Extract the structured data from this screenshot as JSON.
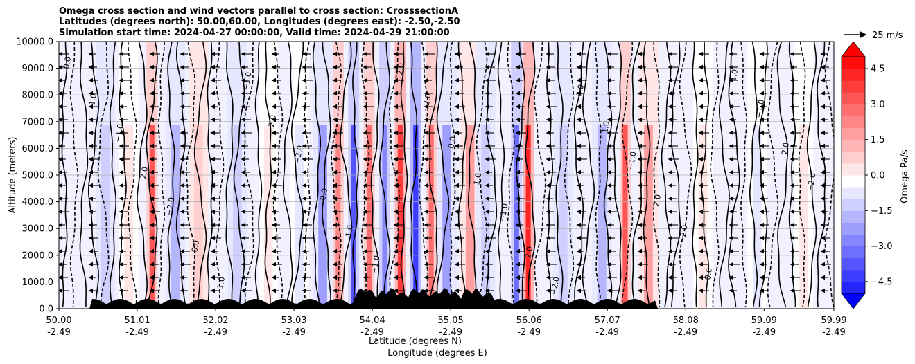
{
  "chart_data": {
    "type": "contour-vector",
    "title_lines": [
      "Omega cross section and wind vectors parallel to cross section: CrosssectionA",
      "Latitudes (degrees north): 50.00,60.00, Longitudes (degrees east): -2.50,-2.50",
      "Simulation start time: 2024-04-27 00:00:00, Valid time: 2024-04-29 21:00:00"
    ],
    "ylabel": "Altitude (meters)",
    "xlabel_lat": "Latitude (degrees N)",
    "xlabel_lon": "Longitude (degrees E)",
    "yticks": [
      "0.0",
      "1000.0",
      "2000.0",
      "3000.0",
      "4000.0",
      "5000.0",
      "6000.0",
      "7000.0",
      "8000.0",
      "9000.0",
      "10000.0"
    ],
    "y_values": [
      0,
      1000,
      2000,
      3000,
      4000,
      5000,
      6000,
      7000,
      8000,
      9000,
      10000
    ],
    "ylim": [
      0,
      10000
    ],
    "xticks_lat": [
      "50.00",
      "51.01",
      "52.02",
      "53.03",
      "54.04",
      "55.05",
      "56.06",
      "57.07",
      "58.08",
      "59.09",
      "59.99"
    ],
    "xticks_lon": [
      "-2.49",
      "-2.49",
      "-2.49",
      "-2.49",
      "-2.49",
      "-2.49",
      "-2.49",
      "-2.49",
      "-2.49",
      "-2.49",
      "-2.49"
    ],
    "x_values": [
      50.0,
      51.01,
      52.02,
      53.03,
      54.04,
      55.05,
      56.06,
      57.07,
      58.08,
      59.09,
      59.99
    ],
    "xlim": [
      50.0,
      59.99
    ],
    "colorbar": {
      "label": "Omega Pa/s",
      "ticks": [
        "4.5",
        "3.0",
        "1.5",
        "0.0",
        "−1.5",
        "−3.0",
        "−4.5"
      ],
      "tick_values": [
        4.5,
        3.0,
        1.5,
        0.0,
        -1.5,
        -3.0,
        -4.5
      ],
      "range": [
        -5.0,
        5.0
      ],
      "levels": 20,
      "low_color": "#0000ff",
      "high_color": "#ff0000",
      "mid_color": "#ffffff"
    },
    "quiver_key": {
      "label": "25 m/s",
      "speed": 25
    },
    "contour_labels": [
      "0.0",
      "1.0",
      "−1.0",
      "2.0",
      "−2.0"
    ],
    "bands": [
      {
        "lat": 50.6,
        "omega": -0.8
      },
      {
        "lat": 50.9,
        "omega": 0.6
      },
      {
        "lat": 51.2,
        "omega": 3.5
      },
      {
        "lat": 51.5,
        "omega": -1.5
      },
      {
        "lat": 51.8,
        "omega": 0.8
      },
      {
        "lat": 52.3,
        "omega": -1.0
      },
      {
        "lat": 52.7,
        "omega": 0.5
      },
      {
        "lat": 53.1,
        "omega": -0.6
      },
      {
        "lat": 53.4,
        "omega": -2.0
      },
      {
        "lat": 53.6,
        "omega": 2.5
      },
      {
        "lat": 53.8,
        "omega": -3.5
      },
      {
        "lat": 54.0,
        "omega": 3.0
      },
      {
        "lat": 54.2,
        "omega": -2.5
      },
      {
        "lat": 54.4,
        "omega": 4.0
      },
      {
        "lat": 54.6,
        "omega": -4.0
      },
      {
        "lat": 54.8,
        "omega": 3.0
      },
      {
        "lat": 55.0,
        "omega": -2.0
      },
      {
        "lat": 55.3,
        "omega": 2.0
      },
      {
        "lat": 55.5,
        "omega": -1.0
      },
      {
        "lat": 55.9,
        "omega": -3.0
      },
      {
        "lat": 56.05,
        "omega": 4.5
      },
      {
        "lat": 56.5,
        "omega": -0.8
      },
      {
        "lat": 57.0,
        "omega": -1.5
      },
      {
        "lat": 57.3,
        "omega": 3.5
      },
      {
        "lat": 57.6,
        "omega": 2.0
      },
      {
        "lat": 58.3,
        "omega": 0.4
      },
      {
        "lat": 59.0,
        "omega": -0.3
      },
      {
        "lat": 59.6,
        "omega": 0.3
      }
    ]
  }
}
